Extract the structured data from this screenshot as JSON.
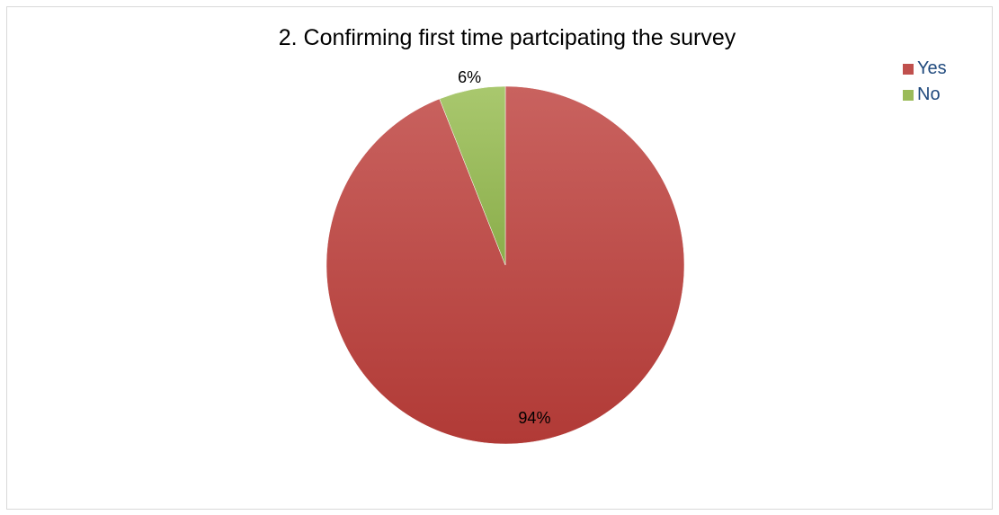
{
  "chart_data": {
    "type": "pie",
    "title": "2. Confirming first time partcipating the survey",
    "categories": [
      "Yes",
      "No"
    ],
    "values": [
      94,
      6
    ],
    "data_labels": [
      "94%",
      "6%"
    ],
    "colors": [
      "#c0504d",
      "#9bbb59"
    ],
    "legend_position": "top-right",
    "grid": false
  }
}
